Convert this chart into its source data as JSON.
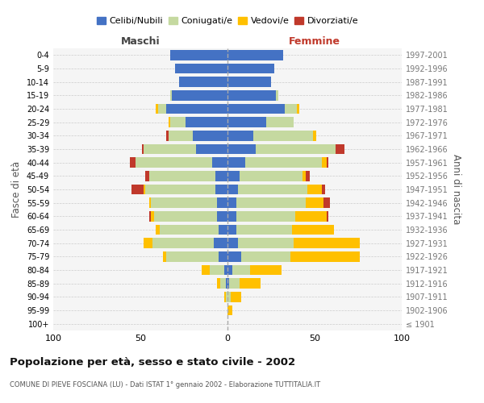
{
  "age_groups": [
    "100+",
    "95-99",
    "90-94",
    "85-89",
    "80-84",
    "75-79",
    "70-74",
    "65-69",
    "60-64",
    "55-59",
    "50-54",
    "45-49",
    "40-44",
    "35-39",
    "30-34",
    "25-29",
    "20-24",
    "15-19",
    "10-14",
    "5-9",
    "0-4"
  ],
  "birth_years": [
    "≤ 1901",
    "1902-1906",
    "1907-1911",
    "1912-1916",
    "1917-1921",
    "1922-1926",
    "1927-1931",
    "1932-1936",
    "1937-1941",
    "1942-1946",
    "1947-1951",
    "1952-1956",
    "1957-1961",
    "1962-1966",
    "1967-1971",
    "1972-1976",
    "1977-1981",
    "1982-1986",
    "1987-1991",
    "1992-1996",
    "1997-2001"
  ],
  "colors": {
    "celibi": "#4472c4",
    "coniugati": "#c5d9a0",
    "vedovi": "#ffc000",
    "divorziati": "#c0392b"
  },
  "maschi": {
    "celibi": [
      0,
      0,
      0,
      1,
      2,
      5,
      8,
      5,
      6,
      6,
      7,
      7,
      9,
      18,
      20,
      24,
      35,
      32,
      28,
      30,
      33
    ],
    "coniugati": [
      0,
      0,
      1,
      3,
      8,
      30,
      35,
      34,
      36,
      38,
      40,
      38,
      44,
      30,
      14,
      9,
      5,
      1,
      0,
      0,
      0
    ],
    "vedovi": [
      0,
      0,
      1,
      2,
      5,
      2,
      5,
      2,
      2,
      1,
      1,
      0,
      0,
      0,
      0,
      1,
      1,
      0,
      0,
      0,
      0
    ],
    "divorziati": [
      0,
      0,
      0,
      0,
      0,
      0,
      0,
      0,
      1,
      0,
      7,
      2,
      3,
      1,
      1,
      0,
      0,
      0,
      0,
      0,
      0
    ]
  },
  "femmine": {
    "celibi": [
      0,
      0,
      0,
      1,
      3,
      8,
      6,
      5,
      5,
      5,
      6,
      7,
      10,
      16,
      15,
      22,
      33,
      28,
      25,
      27,
      32
    ],
    "coniugati": [
      0,
      0,
      2,
      6,
      10,
      28,
      32,
      32,
      34,
      40,
      40,
      36,
      44,
      46,
      34,
      16,
      7,
      1,
      0,
      0,
      0
    ],
    "vedovi": [
      0,
      3,
      6,
      12,
      18,
      40,
      38,
      24,
      18,
      10,
      8,
      2,
      3,
      0,
      2,
      0,
      1,
      0,
      0,
      0,
      0
    ],
    "divorziati": [
      0,
      0,
      0,
      0,
      0,
      0,
      0,
      0,
      1,
      4,
      2,
      2,
      1,
      5,
      0,
      0,
      0,
      0,
      0,
      0,
      0
    ]
  },
  "title": "Popolazione per età, sesso e stato civile - 2002",
  "subtitle": "COMUNE DI PIEVE FOSCIANA (LU) - Dati ISTAT 1° gennaio 2002 - Elaborazione TUTTITALIA.IT",
  "xlabel_maschi": "Maschi",
  "xlabel_femmine": "Femmine",
  "ylabel": "Fasce di età",
  "ylabel_right": "Anni di nascita",
  "xlim": 100,
  "legend_labels": [
    "Celibi/Nubili",
    "Coniugati/e",
    "Vedovi/e",
    "Divorziati/e"
  ],
  "background_color": "#ffffff",
  "plot_bg_color": "#f5f5f5",
  "grid_color": "#cccccc"
}
